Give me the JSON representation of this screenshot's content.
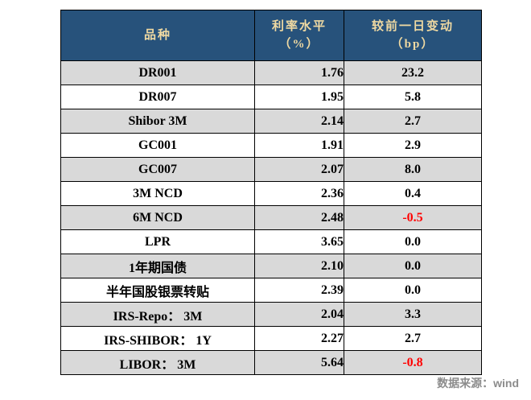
{
  "chart_data": {
    "type": "table",
    "columns": [
      "品种",
      "利率水平（%）",
      "较前一日变动（bp）"
    ],
    "rows": [
      [
        "DR001",
        1.76,
        23.2
      ],
      [
        "DR007",
        1.95,
        5.8
      ],
      [
        "Shibor 3M",
        2.14,
        2.7
      ],
      [
        "GC001",
        1.91,
        2.9
      ],
      [
        "GC007",
        2.07,
        8.0
      ],
      [
        "3M NCD",
        2.36,
        0.4
      ],
      [
        "6M NCD",
        2.48,
        -0.5
      ],
      [
        "LPR",
        3.65,
        0.0
      ],
      [
        "1年期国债",
        2.1,
        0.0
      ],
      [
        "半年国股银票转贴",
        2.39,
        0.0
      ],
      [
        "IRS-Repo： 3M",
        2.04,
        3.3
      ],
      [
        "IRS-SHIBOR： 1Y",
        2.27,
        2.7
      ],
      [
        "LIBOR： 3M",
        5.64,
        -0.8
      ],
      [
        "__source__",
        null,
        null
      ]
    ],
    "source": "数据来源：wind"
  },
  "table": {
    "header": {
      "col1": "品种",
      "col2_line1": "利率水平",
      "col2_line2": "（%）",
      "col3_line1": "较前一日变动",
      "col3_line2": "（bp）"
    },
    "rows": [
      {
        "name": "DR001",
        "rate": "1.76",
        "change": "23.2"
      },
      {
        "name": "DR007",
        "rate": "1.95",
        "change": "5.8"
      },
      {
        "name": "Shibor 3M",
        "rate": "2.14",
        "change": "2.7"
      },
      {
        "name": "GC001",
        "rate": "1.91",
        "change": "2.9"
      },
      {
        "name": "GC007",
        "rate": "2.07",
        "change": "8.0"
      },
      {
        "name": "3M NCD",
        "rate": "2.36",
        "change": "0.4"
      },
      {
        "name": "6M NCD",
        "rate": "2.48",
        "change": "-0.5"
      },
      {
        "name": "LPR",
        "rate": "3.65",
        "change": "0.0"
      },
      {
        "name": "1年期国债",
        "rate": "2.10",
        "change": "0.0"
      },
      {
        "name": "半年国股银票转贴",
        "rate": "2.39",
        "change": "0.0"
      },
      {
        "name": "IRS-Repo： 3M",
        "rate": "2.04",
        "change": "3.3"
      },
      {
        "name": "IRS-SHIBOR： 1Y",
        "rate": "2.27",
        "change": "2.7"
      },
      {
        "name": "LIBOR： 3M",
        "rate": "5.64",
        "change": "-0.8"
      }
    ]
  },
  "footer": {
    "text": "数据来源：wind"
  },
  "colors": {
    "header_bg": "#27527B",
    "header_text": "#EFD9A2",
    "stripe": "#D9D9D9",
    "negative": "#FF0000",
    "footer_text": "#8C8C8C"
  }
}
